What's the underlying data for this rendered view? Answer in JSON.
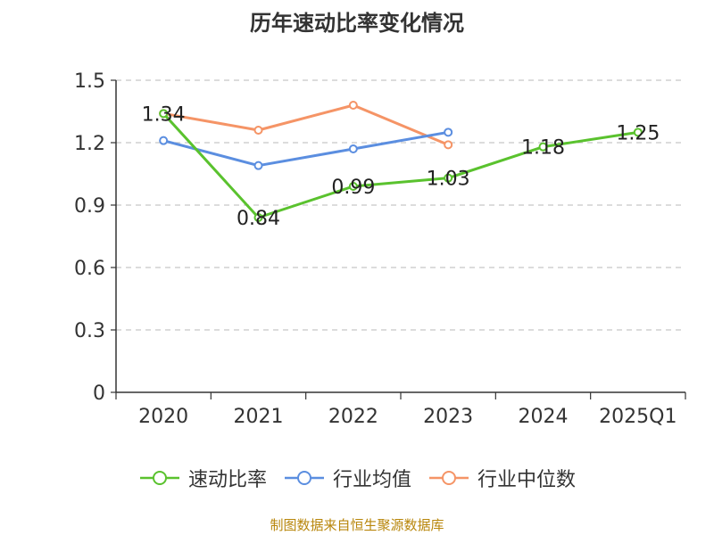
{
  "chart_data": {
    "type": "line",
    "title": "历年速动比率变化情况",
    "categories": [
      "2020",
      "2021",
      "2022",
      "2023",
      "2024",
      "2025Q1"
    ],
    "ylim": [
      0,
      1.5
    ],
    "yticks": [
      "0",
      "0.3",
      "0.6",
      "0.9",
      "1.2",
      "1.5"
    ],
    "ytick_values": [
      0,
      0.3,
      0.6,
      0.9,
      1.2,
      1.5
    ],
    "grid": true,
    "legend_position": "bottom",
    "series": [
      {
        "name": "速动比率",
        "color": "#5ac22e",
        "values": [
          1.34,
          0.84,
          0.99,
          1.03,
          1.18,
          1.25
        ],
        "labels": [
          "1.34",
          "0.84",
          "0.99",
          "1.03",
          "1.18",
          "1.25"
        ]
      },
      {
        "name": "行业均值",
        "color": "#5b8ee0",
        "values": [
          1.21,
          1.09,
          1.17,
          1.25,
          null,
          null
        ]
      },
      {
        "name": "行业中位数",
        "color": "#f59466",
        "values": [
          1.34,
          1.26,
          1.38,
          1.19,
          null,
          null
        ]
      }
    ]
  },
  "source": "制图数据来自恒生聚源数据库"
}
